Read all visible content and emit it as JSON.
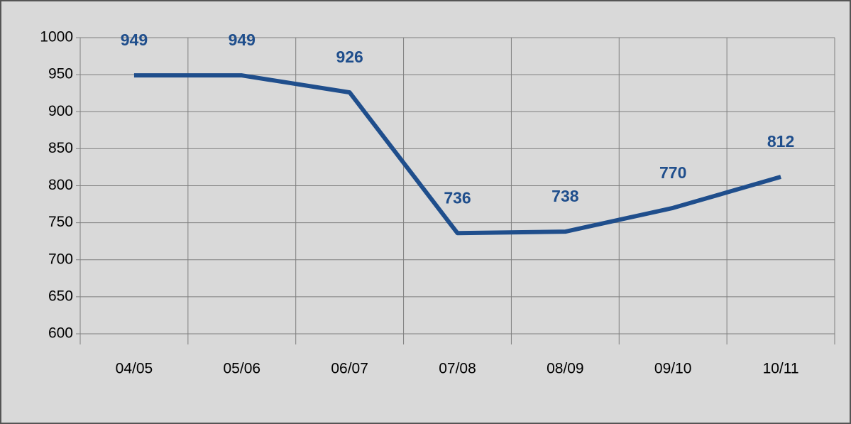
{
  "chart_data": {
    "type": "line",
    "categories": [
      "04/05",
      "05/06",
      "06/07",
      "07/08",
      "08/09",
      "09/10",
      "10/11"
    ],
    "values": [
      949,
      949,
      926,
      736,
      738,
      770,
      812
    ],
    "color": "#1f4e8c",
    "ylim": [
      600,
      1000
    ],
    "yticks": [
      600,
      650,
      700,
      750,
      800,
      850,
      900,
      950,
      1000
    ],
    "grid": true
  }
}
